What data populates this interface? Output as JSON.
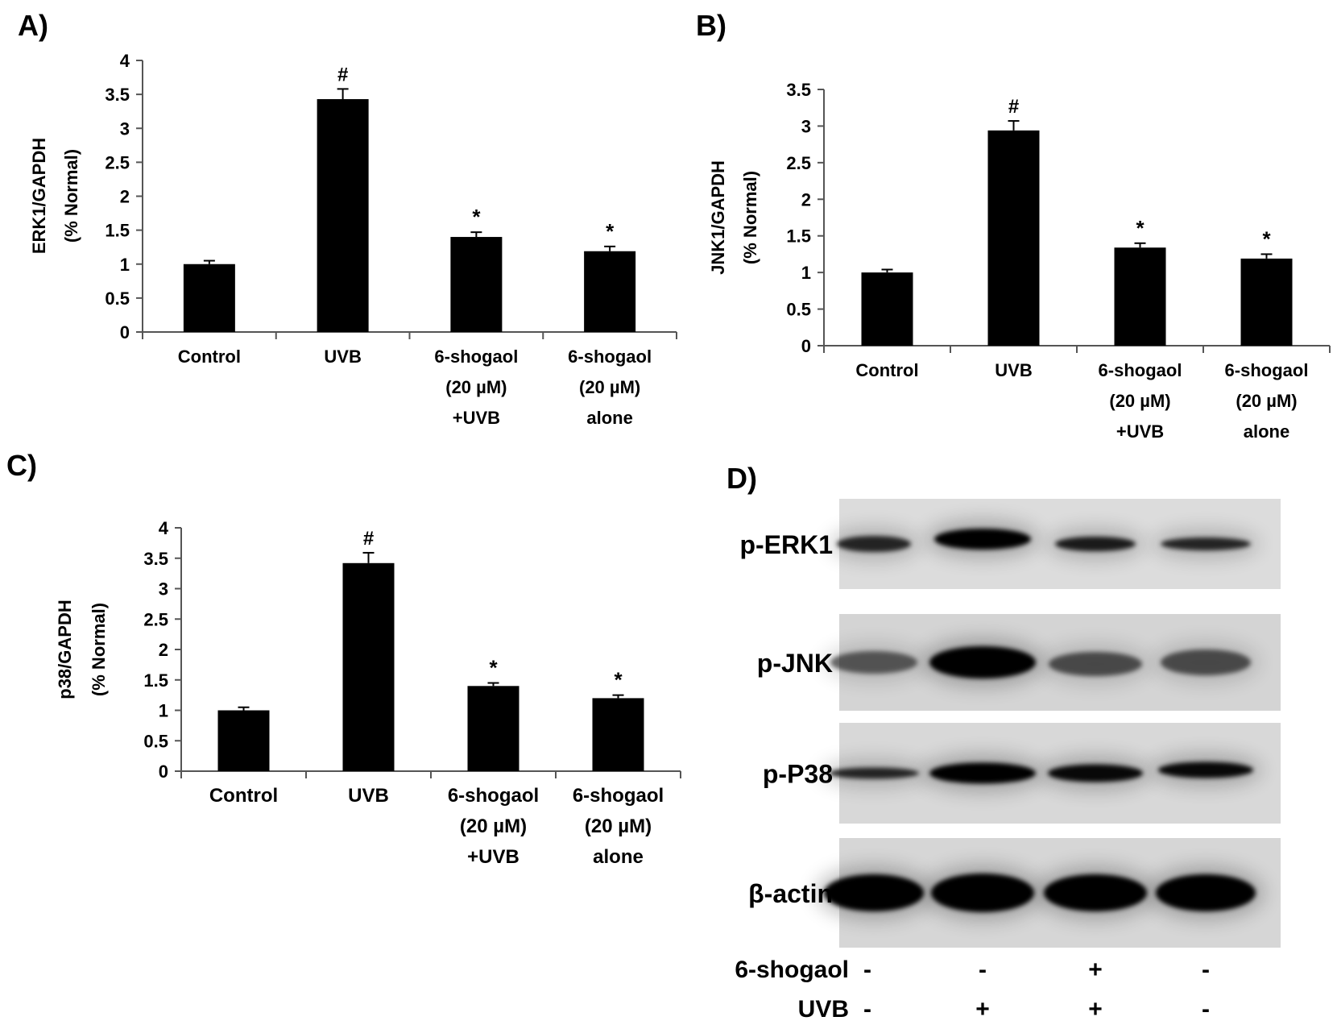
{
  "panels": [
    {
      "label": "A)",
      "chart_data": {
        "type": "bar",
        "categories": [
          [
            "Control"
          ],
          [
            "UVB"
          ],
          [
            "6-shogaol",
            "(20 µM)",
            "+UVB"
          ],
          [
            "6-shogaol",
            "(20 µM)",
            "alone"
          ]
        ],
        "values": [
          1.0,
          3.43,
          1.4,
          1.19
        ],
        "errors": [
          0.05,
          0.15,
          0.07,
          0.07
        ],
        "annotations": [
          "",
          "#",
          "*",
          "*"
        ],
        "ylabel": [
          "ERK1/GAPDH",
          "(% Normal)"
        ],
        "ylim": [
          0,
          4
        ],
        "yticks": [
          "0",
          "0.5",
          "1",
          "1.5",
          "2",
          "2.5",
          "3",
          "3.5",
          "4"
        ]
      }
    },
    {
      "label": "B)",
      "chart_data": {
        "type": "bar",
        "categories": [
          [
            "Control"
          ],
          [
            "UVB"
          ],
          [
            "6-shogaol",
            "(20 µM)",
            "+UVB"
          ],
          [
            "6-shogaol",
            "(20 µM)",
            "alone"
          ]
        ],
        "values": [
          1.0,
          2.94,
          1.34,
          1.19
        ],
        "errors": [
          0.04,
          0.13,
          0.06,
          0.06
        ],
        "annotations": [
          "",
          "#",
          "*",
          "*"
        ],
        "ylabel": [
          "JNK1/GAPDH",
          "(% Normal)"
        ],
        "ylim": [
          0,
          3.5
        ],
        "yticks": [
          "0",
          "0.5",
          "1",
          "1.5",
          "2",
          "2.5",
          "3",
          "3.5"
        ]
      }
    },
    {
      "label": "C)",
      "chart_data": {
        "type": "bar",
        "categories": [
          [
            "Control"
          ],
          [
            "UVB"
          ],
          [
            "6-shogaol",
            "(20 µM)",
            "+UVB"
          ],
          [
            "6-shogaol",
            "(20 µM)",
            "alone"
          ]
        ],
        "values": [
          1.0,
          3.42,
          1.4,
          1.2
        ],
        "errors": [
          0.05,
          0.17,
          0.05,
          0.05
        ],
        "annotations": [
          "",
          "#",
          "*",
          "*"
        ],
        "ylabel": [
          "p38/GAPDH",
          "(% Normal)"
        ],
        "ylim": [
          0,
          4
        ],
        "yticks": [
          "0",
          "0.5",
          "1",
          "1.5",
          "2",
          "2.5",
          "3",
          "3.5",
          "4"
        ]
      }
    }
  ],
  "blot": {
    "label": "D)",
    "rows": [
      "p-ERK1",
      "p-JNK",
      "p-P38",
      "β-actin"
    ],
    "conditions": [
      {
        "name": "6-shogaol",
        "marks": [
          "-",
          "-",
          "+",
          "-"
        ]
      },
      {
        "name": "UVB",
        "marks": [
          "-",
          "+",
          "+",
          "-"
        ]
      }
    ]
  }
}
